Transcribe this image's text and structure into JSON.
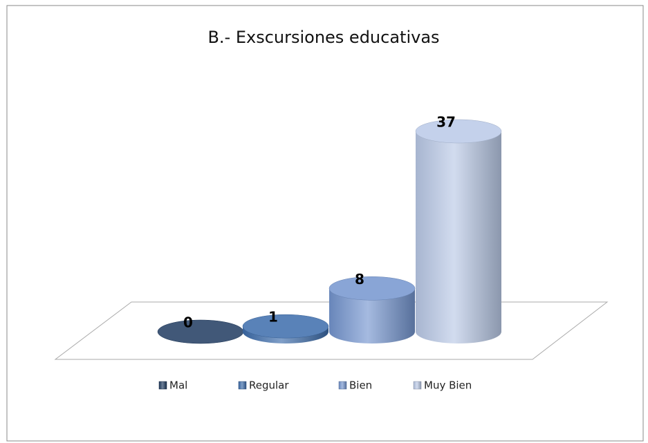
{
  "chart_data": {
    "type": "cylinder",
    "title": "B.-  Exscursiones educativas",
    "categories": [
      "Mal",
      "Regular",
      "Bien",
      "Muy Bien"
    ],
    "values": [
      0,
      1,
      8,
      37
    ],
    "colors": [
      "#1f3b60",
      "#3c6cab",
      "#7495cf",
      "#b9c9e7"
    ],
    "legend": "bottom"
  }
}
